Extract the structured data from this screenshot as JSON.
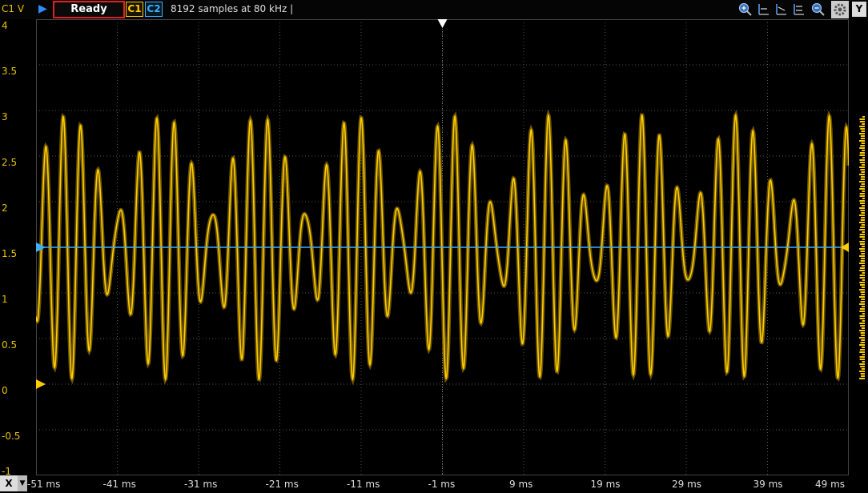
{
  "toolbar": {
    "channel_unit_label": "C1 V",
    "status": "Ready",
    "c1_label": "C1",
    "c2_label": "C2",
    "samples_text": "8192 samples at 80 kHz |",
    "y_button": "Y",
    "icons": [
      "zoom-in-icon",
      "cursor-a-icon",
      "cursor-b-icon",
      "cursor-ab-icon",
      "zoom-out-icon",
      "settings-gear-icon"
    ]
  },
  "xaxis": {
    "button": "X",
    "ticks": [
      "-51 ms",
      "-41 ms",
      "-31 ms",
      "-21 ms",
      "-11 ms",
      "-1 ms",
      "9 ms",
      "19 ms",
      "29 ms",
      "39 ms",
      "49 ms"
    ]
  },
  "chart_data": {
    "type": "line",
    "xlabel": "",
    "ylabel": "C1 V",
    "xlim": [
      -51,
      49
    ],
    "ylim": [
      -1,
      4
    ],
    "yticks": [
      4,
      3.5,
      3,
      2.5,
      2,
      1.5,
      1,
      0.5,
      0,
      -0.5,
      -1
    ],
    "grid": true,
    "colors": {
      "c1": "#ffcc00",
      "c2": "#3fb0ff"
    },
    "series": [
      {
        "name": "C1",
        "description_components": [
          {
            "freq_hz": 435,
            "amp": 0.9
          },
          {
            "freq_hz": 520,
            "amp": 0.55
          }
        ],
        "offset": 1.5
      },
      {
        "name": "C2",
        "constant": 1.5
      }
    ],
    "c1_ground_marker": 0,
    "c2_level_marker": 1.5,
    "trigger_time_ms": -1
  }
}
